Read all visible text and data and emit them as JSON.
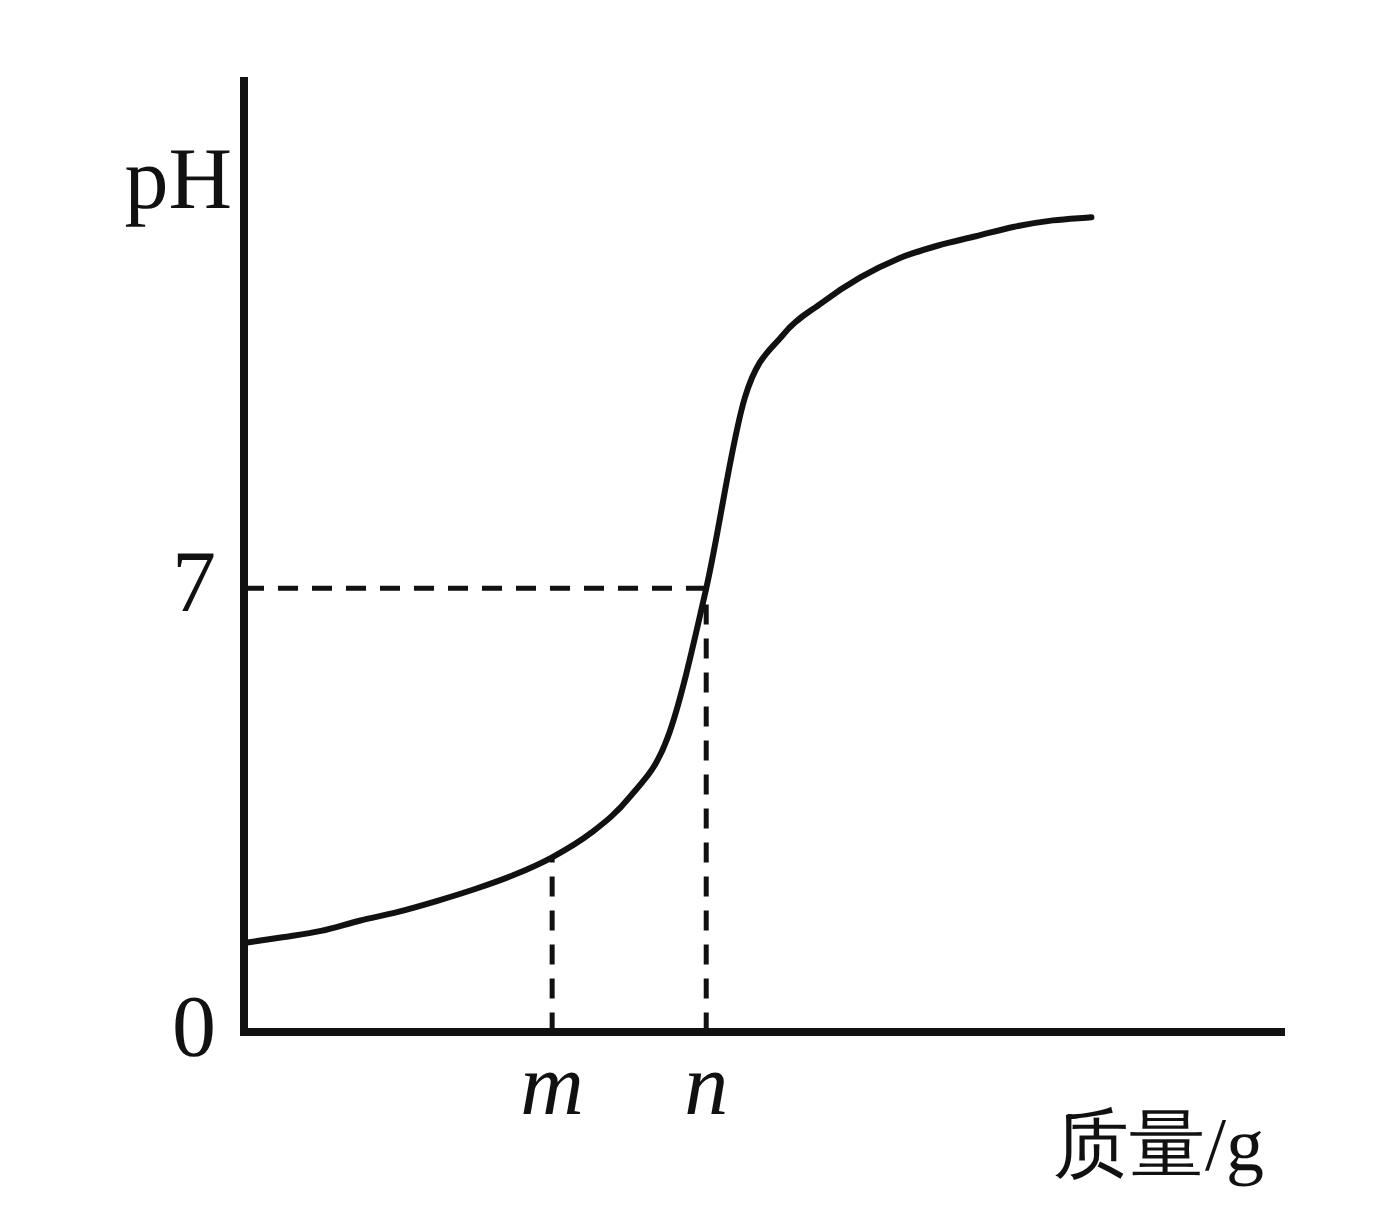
{
  "chart_data": {
    "type": "line",
    "xlabel": "质量/g",
    "ylabel": "pH",
    "categories": [
      null,
      null,
      null,
      null,
      null,
      null,
      null,
      null,
      "m",
      null,
      null,
      null,
      "n",
      null,
      null,
      null,
      null,
      null,
      null,
      null,
      null,
      null,
      null,
      null,
      null,
      null,
      null,
      null
    ],
    "series": [
      {
        "color": "#111111",
        "values": [
          1.41,
          1.5,
          1.6,
          1.76,
          1.9,
          2.07,
          2.26,
          2.48,
          2.76,
          3.14,
          3.7,
          4.65,
          7,
          10.0,
          11.0,
          11.5,
          11.9,
          12.2,
          12.4,
          12.55,
          12.7,
          12.8,
          12.85,
          null,
          null,
          null,
          null,
          null
        ]
      }
    ],
    "ylim": [
      0,
      15
    ],
    "yticks": [
      0,
      7
    ],
    "ref_lines": [
      {
        "axis": "y",
        "value": 7,
        "line_style": "dashed"
      },
      {
        "axis": "x",
        "value": "m",
        "line_style": "dashed"
      },
      {
        "axis": "x",
        "value": "n",
        "line_style": "dashed"
      }
    ],
    "grid": false,
    "legend": false,
    "marker": "none",
    "line_style": "solid"
  }
}
